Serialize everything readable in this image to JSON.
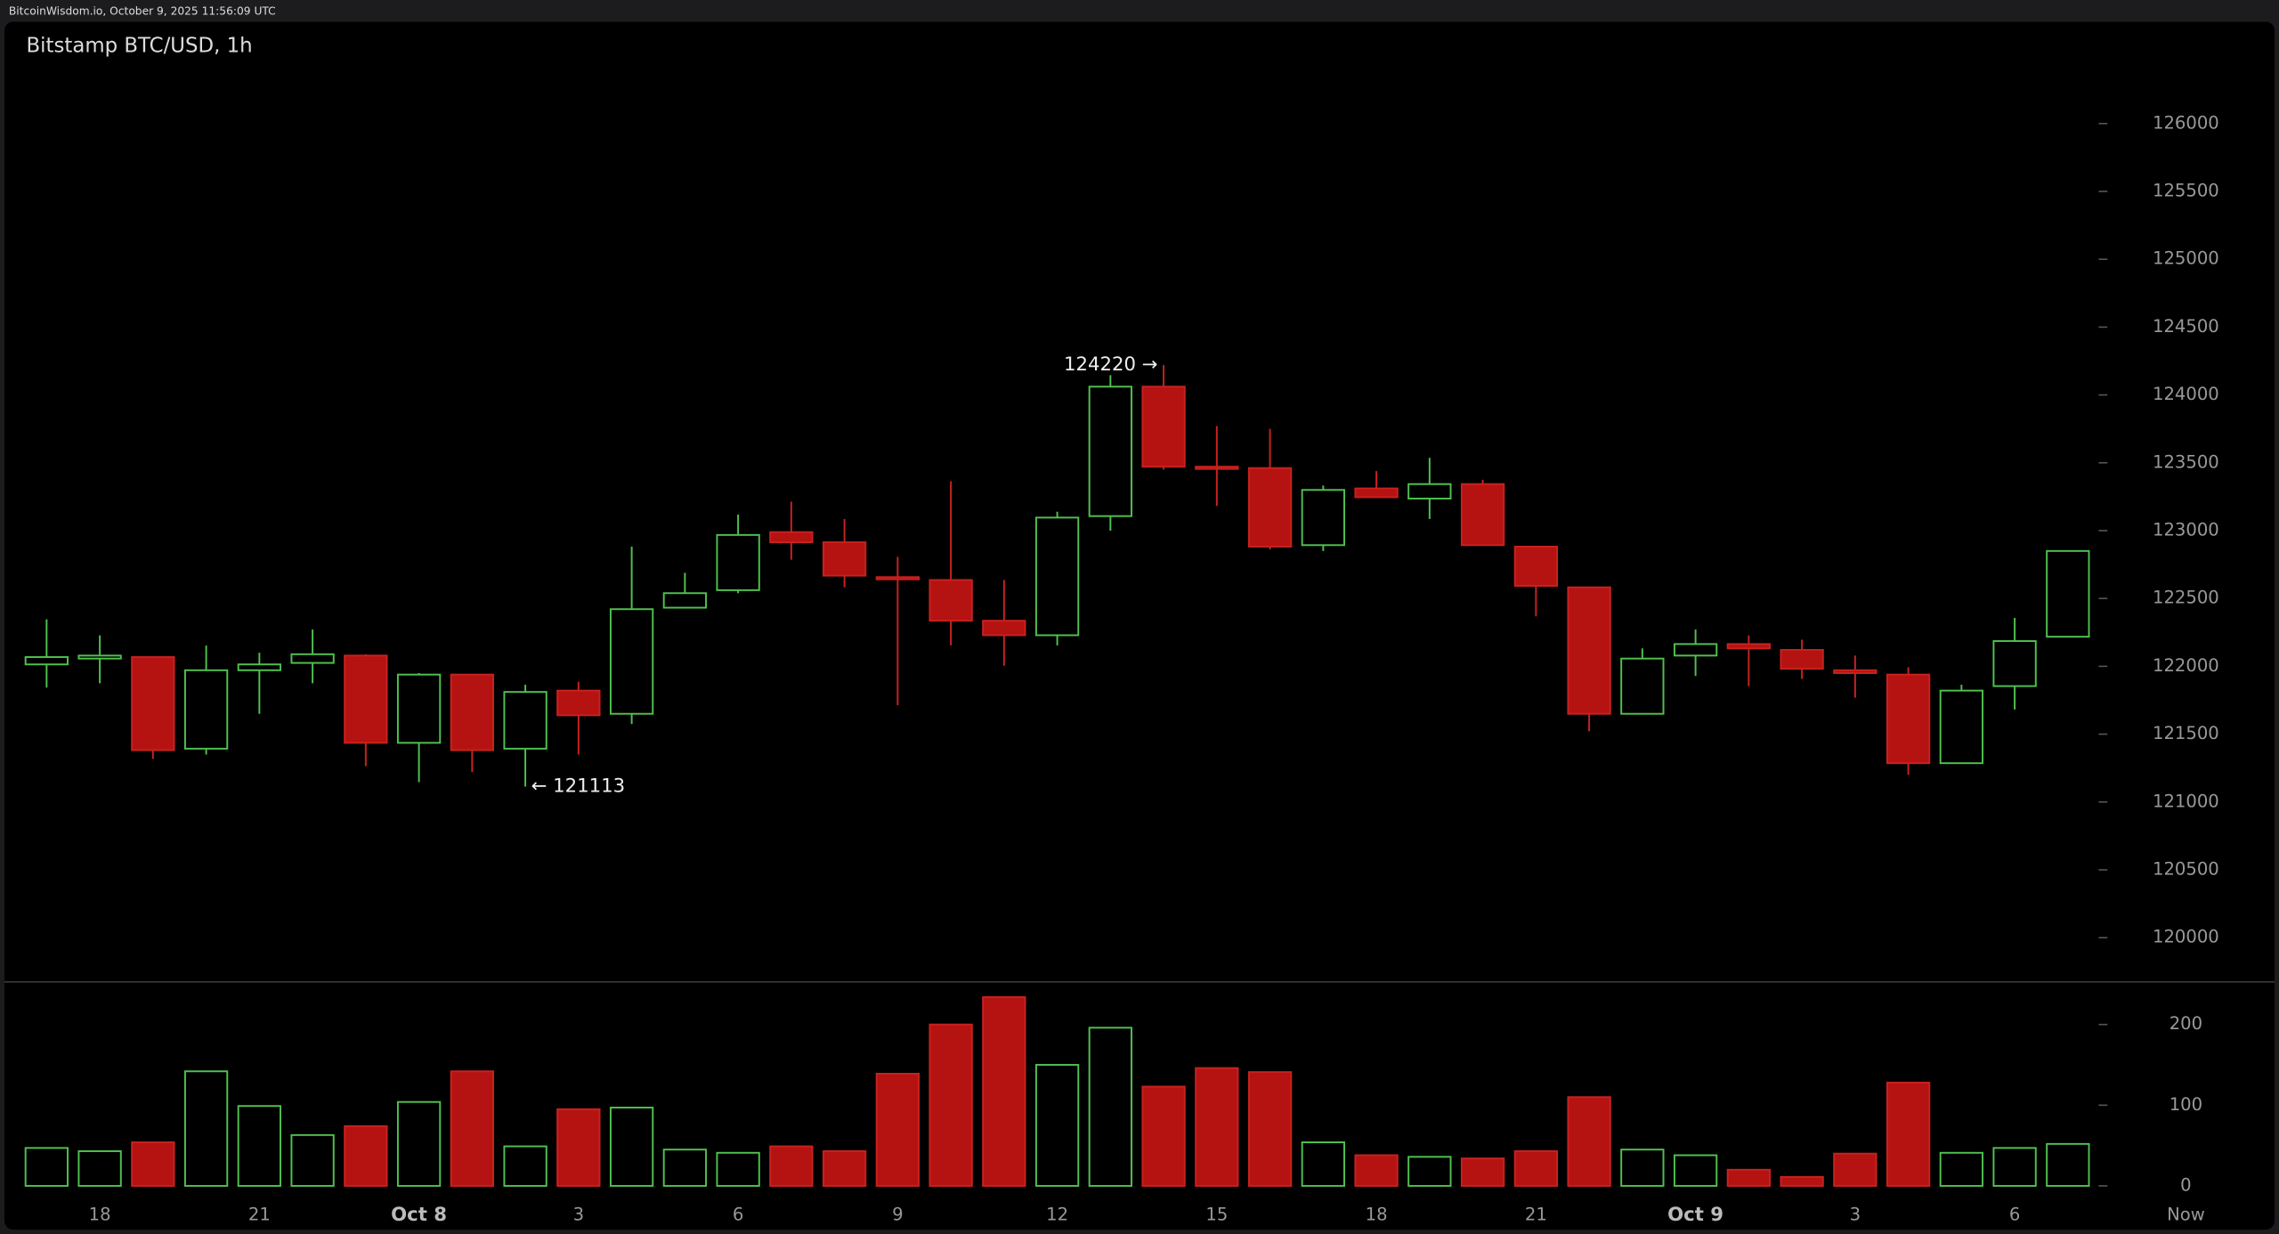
{
  "chart_data": {
    "type": "candlestick",
    "header": "BitcoinWisdom.io, October 9, 2025 11:56:09 UTC",
    "title": "Bitstamp BTC/USD, 1h",
    "categories": [
      null,
      "18",
      null,
      null,
      "21",
      null,
      null,
      "Oct 8",
      null,
      null,
      "3",
      null,
      null,
      "6",
      null,
      null,
      "9",
      null,
      null,
      "12",
      null,
      null,
      "15",
      null,
      null,
      "18",
      null,
      null,
      "21",
      null,
      null,
      "Oct 9",
      null,
      null,
      "3",
      null,
      null,
      "6",
      null
    ],
    "now_label": "Now",
    "open": [
      122014,
      122057,
      122068,
      121393,
      121971,
      122025,
      122079,
      121436,
      121939,
      121393,
      121821,
      121650,
      122432,
      122561,
      122989,
      122914,
      122657,
      122636,
      122336,
      122229,
      123107,
      124061,
      123471,
      123461,
      122893,
      123311,
      123236,
      123343,
      122882,
      122582,
      121650,
      122079,
      122164,
      122121,
      121971,
      121939,
      121286,
      121854,
      122218
    ],
    "high": [
      122346,
      122228,
      122068,
      122153,
      122100,
      122271,
      122089,
      121950,
      121939,
      121864,
      121886,
      122882,
      122689,
      123118,
      123214,
      123086,
      122807,
      123364,
      122636,
      123139,
      124146,
      124220,
      123771,
      123750,
      123332,
      123439,
      123536,
      123375,
      122882,
      122582,
      122132,
      122271,
      122228,
      122196,
      122079,
      121993,
      121864,
      122357,
      122850
    ],
    "low": [
      121843,
      121875,
      121318,
      121350,
      121650,
      121875,
      121264,
      121146,
      121221,
      121113,
      121350,
      121575,
      122432,
      122539,
      122786,
      122582,
      121714,
      122154,
      122004,
      122154,
      123000,
      123450,
      123182,
      122861,
      122850,
      123246,
      123086,
      122893,
      122368,
      121521,
      121650,
      121929,
      121854,
      121907,
      121768,
      121200,
      121286,
      121682,
      122218
    ],
    "close": [
      122068,
      122079,
      121382,
      121971,
      122014,
      122089,
      121436,
      121939,
      121382,
      121811,
      121639,
      122421,
      122539,
      122968,
      122914,
      122668,
      122646,
      122336,
      122229,
      123096,
      124061,
      123471,
      123461,
      122882,
      123300,
      123246,
      123343,
      122893,
      122593,
      121650,
      122057,
      122164,
      122132,
      121982,
      121950,
      121286,
      121821,
      122186,
      122850
    ],
    "volume": [
      47,
      43,
      54,
      142,
      99,
      63,
      74,
      104,
      142,
      49,
      95,
      97,
      45,
      41,
      49,
      43,
      139,
      200,
      234,
      150,
      196,
      123,
      146,
      141,
      54,
      38,
      36,
      34,
      43,
      110,
      45,
      38,
      20,
      11,
      40,
      128,
      41,
      47,
      52
    ],
    "up_color": "#4fc04f",
    "down_color": "#b51212",
    "ylim": [
      119680,
      126750
    ],
    "yticks": [
      120000,
      120500,
      121000,
      121500,
      122000,
      122500,
      123000,
      123500,
      124000,
      124500,
      125000,
      125500,
      126000
    ],
    "volume_ylim": [
      -11,
      252
    ],
    "volume_yticks": [
      0,
      100,
      200
    ],
    "max_label": "124220 →",
    "min_label": "← 121113"
  }
}
